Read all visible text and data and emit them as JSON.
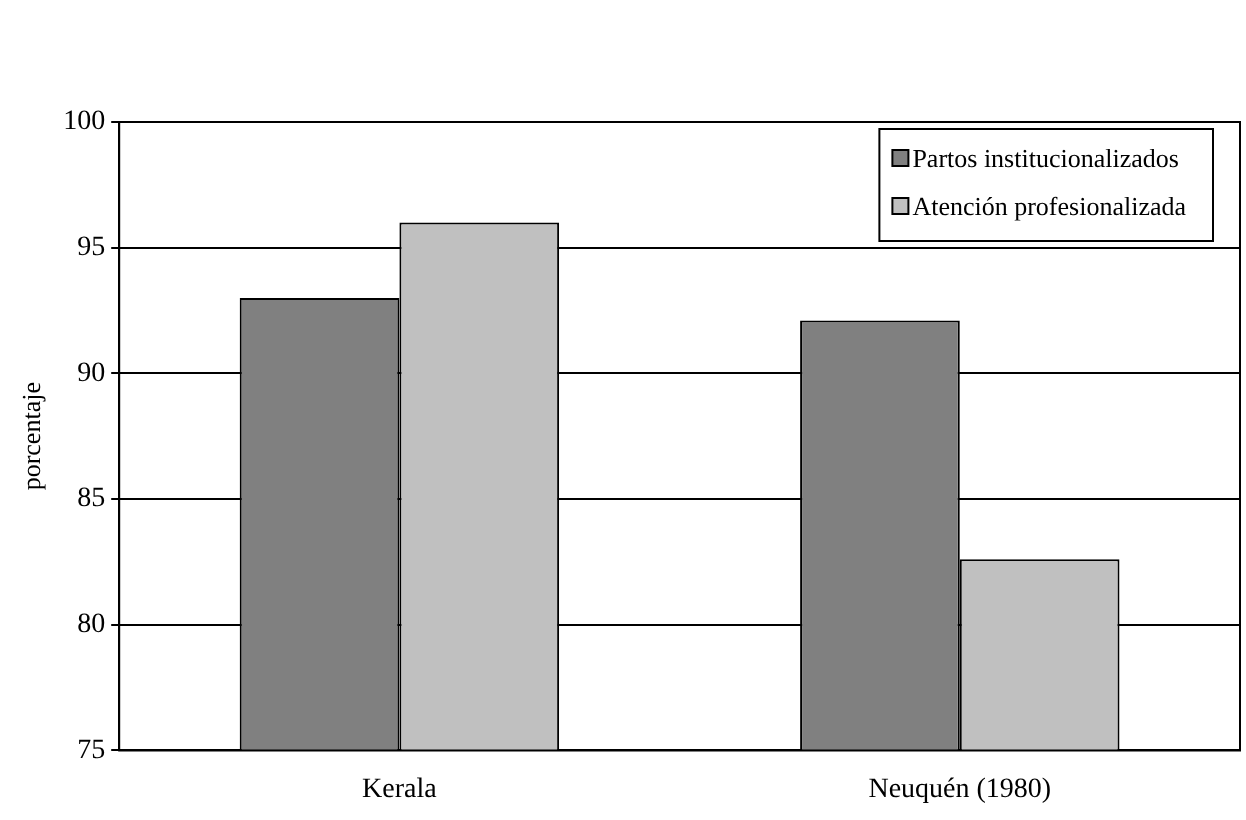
{
  "chart_data": {
    "type": "bar",
    "ylabel": "porcentaje",
    "categories": [
      "Kerala",
      "Neuquén (1980)"
    ],
    "series": [
      {
        "name": "Partos institucionalizados",
        "color": "#808080",
        "values": [
          93,
          92.1
        ]
      },
      {
        "name": "Atención profesionalizada",
        "color": "#c0c0c0",
        "values": [
          96,
          82.6
        ]
      }
    ],
    "ylim": [
      75,
      100
    ],
    "yticks": [
      75,
      80,
      85,
      90,
      95,
      100
    ],
    "grid": "y",
    "legend": "top right"
  }
}
